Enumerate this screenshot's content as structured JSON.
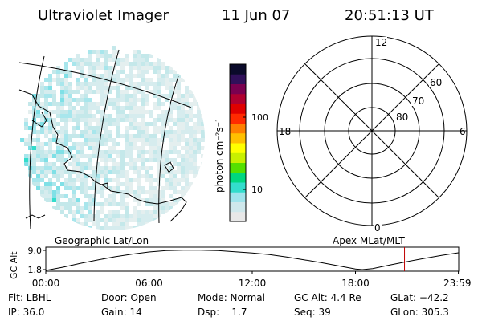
{
  "header": {
    "instrument": "Ultraviolet Imager",
    "date": "11 Jun 07",
    "time": "20:51:13 UT"
  },
  "colorbar": {
    "unit_label": "photon cm⁻²s⁻¹",
    "ticks": [
      "100",
      "10"
    ],
    "scale": "log",
    "colors": [
      "#e8e8e8",
      "#cfe8ec",
      "#a0e4ec",
      "#33ddcc",
      "#00d77f",
      "#55e000",
      "#c8f000",
      "#ffff00",
      "#ffc000",
      "#ff7f00",
      "#ff2a00",
      "#e00000",
      "#b00030",
      "#7a0050",
      "#30105a",
      "#0a0a2a"
    ]
  },
  "geo_map": {
    "label": "Geographic Lat/Lon"
  },
  "polar_plot": {
    "label": "Apex MLat/MLT",
    "mlt_labels": [
      "12",
      "18",
      "6",
      "0"
    ],
    "lat_labels": [
      "60",
      "70",
      "80"
    ]
  },
  "chart_data": {
    "type": "line",
    "ylabel": "GC Alt",
    "yticks": [
      "9.0",
      "1.8"
    ],
    "ylim": [
      1.8,
      9.0
    ],
    "xticks": [
      "00:00",
      "06:00",
      "12:00",
      "18:00",
      "23:59"
    ],
    "x_hours": [
      0,
      1,
      2,
      3,
      4,
      5,
      6,
      7,
      8,
      9,
      10,
      11,
      12,
      13,
      14,
      15,
      16,
      17,
      18,
      18.4,
      19,
      20,
      21,
      22,
      23,
      23.98
    ],
    "series": [
      {
        "values": [
          1.5,
          2.7,
          4.1,
          5.4,
          6.6,
          7.6,
          8.4,
          8.9,
          9.1,
          9.1,
          8.9,
          8.5,
          8.0,
          7.4,
          6.5,
          5.5,
          4.4,
          3.2,
          2.0,
          1.8,
          2.2,
          3.5,
          4.8,
          6.0,
          7.1,
          8.1
        ]
      }
    ],
    "marker_time_hours": 20.85,
    "marker_color": "#c00000"
  },
  "footer": {
    "row1": [
      "Flt: LBHL",
      "Door: Open",
      "Mode: Normal",
      "GC Alt: 4.4 Re",
      "GLat: −42.2"
    ],
    "row2": [
      "IP: 36.0",
      "Gain: 14",
      "Dsp:    1.7",
      "Seq: 39",
      "GLon: 305.3"
    ]
  }
}
